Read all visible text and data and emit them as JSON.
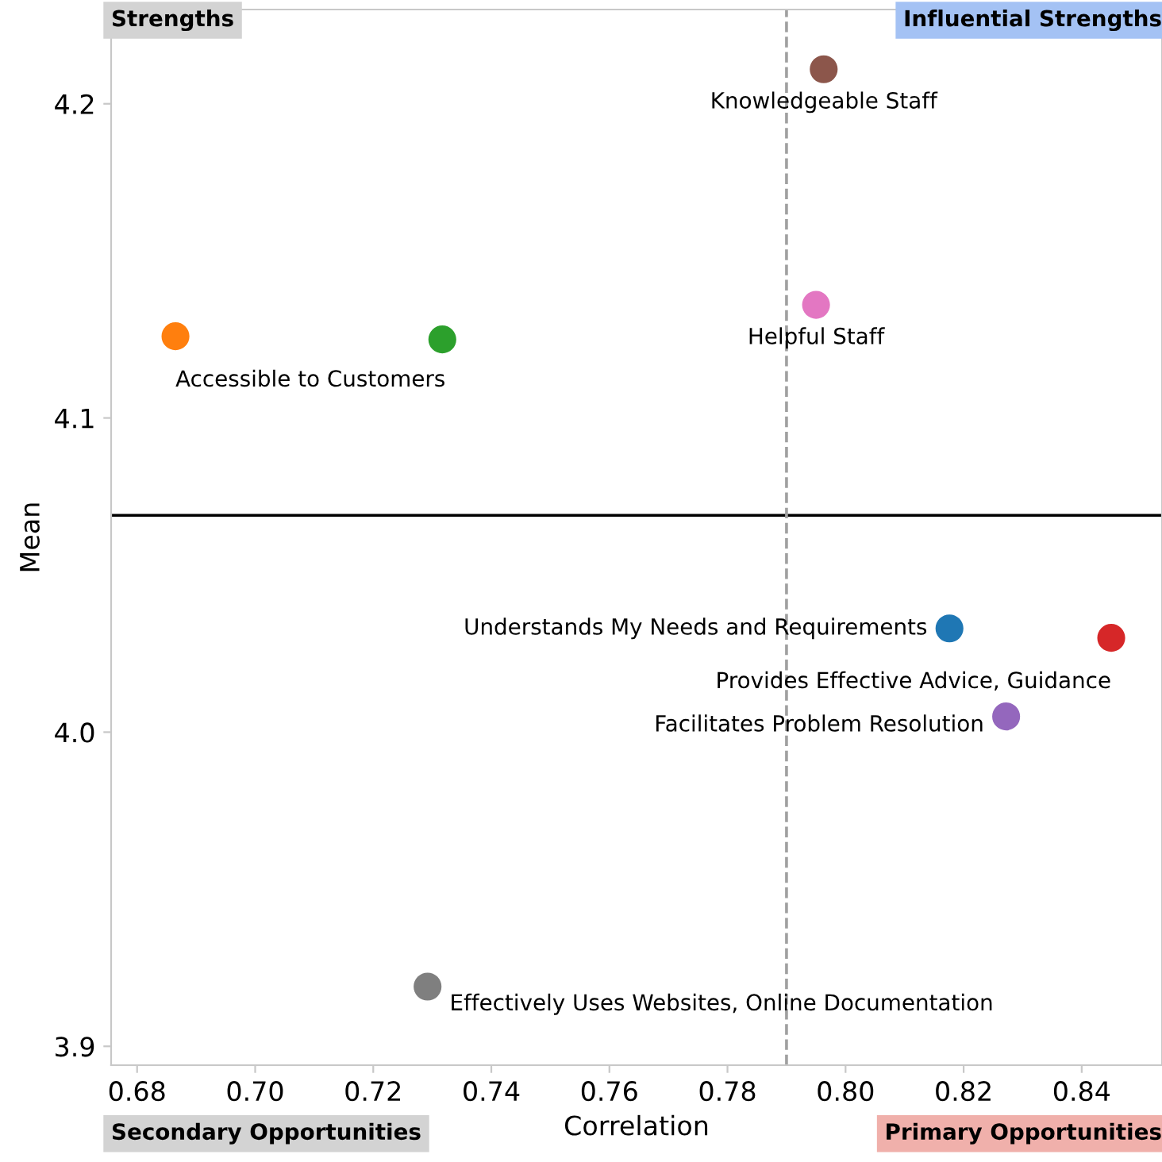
{
  "chart_data": {
    "type": "scatter",
    "xlabel": "Correlation",
    "ylabel": "Mean",
    "x": [
      0.6865,
      0.7317,
      0.7963,
      0.795,
      0.8176,
      0.845,
      0.8272,
      0.7292
    ],
    "values": [
      4.126,
      4.125,
      4.211,
      4.136,
      4.033,
      4.03,
      4.005,
      3.919
    ],
    "colors": [
      "#ff7f0e",
      "#2ca02c",
      "#8c564b",
      "#e377c2",
      "#1f77b4",
      "#d62728",
      "#9467bd",
      "#7f7f7f"
    ],
    "marker": "circle",
    "grid": false,
    "legend": false,
    "xlim": [
      0.6756,
      0.8536
    ],
    "ylim": [
      3.894,
      4.23
    ],
    "xticks": [
      0.68,
      {
        "value": 0.7,
        "label": "0.70"
      },
      0.72,
      0.74,
      0.76,
      0.78,
      {
        "value": 0.8,
        "label": "0.80"
      },
      0.82,
      0.84
    ],
    "yticks": [
      3.9,
      {
        "value": 4.0,
        "label": "4.0"
      },
      4.1,
      4.2
    ],
    "ref_lines": [
      {
        "axis": "y",
        "value": 4.069,
        "color": "#000000",
        "line_style": "solid"
      },
      {
        "axis": "x",
        "value": 0.79,
        "color": "#a0a0a0",
        "line_style": "dashed"
      }
    ],
    "annotations": [
      {
        "text": "Accessible to Customers",
        "x": 0.6865,
        "y": 4.126
      },
      {
        "text": "Knowledgeable Staff",
        "x": 0.7963,
        "y": 4.211
      },
      {
        "text": "Helpful Staff",
        "x": 0.795,
        "y": 4.136
      },
      {
        "text": "Understands My Needs and Requirements",
        "x": 0.8176,
        "y": 4.033
      },
      {
        "text": "Provides Effective Advice, Guidance",
        "x": 0.845,
        "y": 4.03
      },
      {
        "text": "Facilitates Problem Resolution",
        "x": 0.8272,
        "y": 4.005
      },
      {
        "text": "Effectively Uses Websites, Online Documentation",
        "x": 0.7292,
        "y": 3.919
      },
      "Strengths",
      "Influential Strengths",
      "Secondary Opportunities",
      "Primary Opportunities"
    ]
  }
}
